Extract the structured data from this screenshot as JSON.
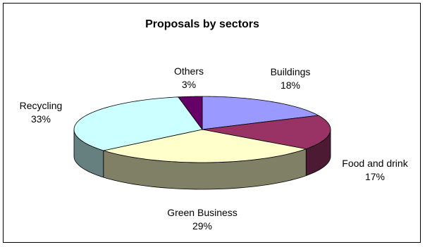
{
  "chart_data": {
    "type": "pie",
    "title": "Proposals by sectors",
    "slices": [
      {
        "label": "Buildings",
        "value": 18,
        "display": "18%",
        "color": "#9999ff"
      },
      {
        "label": "Food and drink",
        "value": 17,
        "display": "17%",
        "color": "#993366"
      },
      {
        "label": "Green Business",
        "value": 29,
        "display": "29%",
        "color": "#ffffcc"
      },
      {
        "label": "Recycling",
        "value": 33,
        "display": "33%",
        "color": "#ccffff"
      },
      {
        "label": "Others",
        "value": 3,
        "display": "3%",
        "color": "#660066"
      }
    ],
    "start_angle_deg": 90,
    "direction": "clockwise",
    "style": "3d",
    "legend": "none"
  }
}
